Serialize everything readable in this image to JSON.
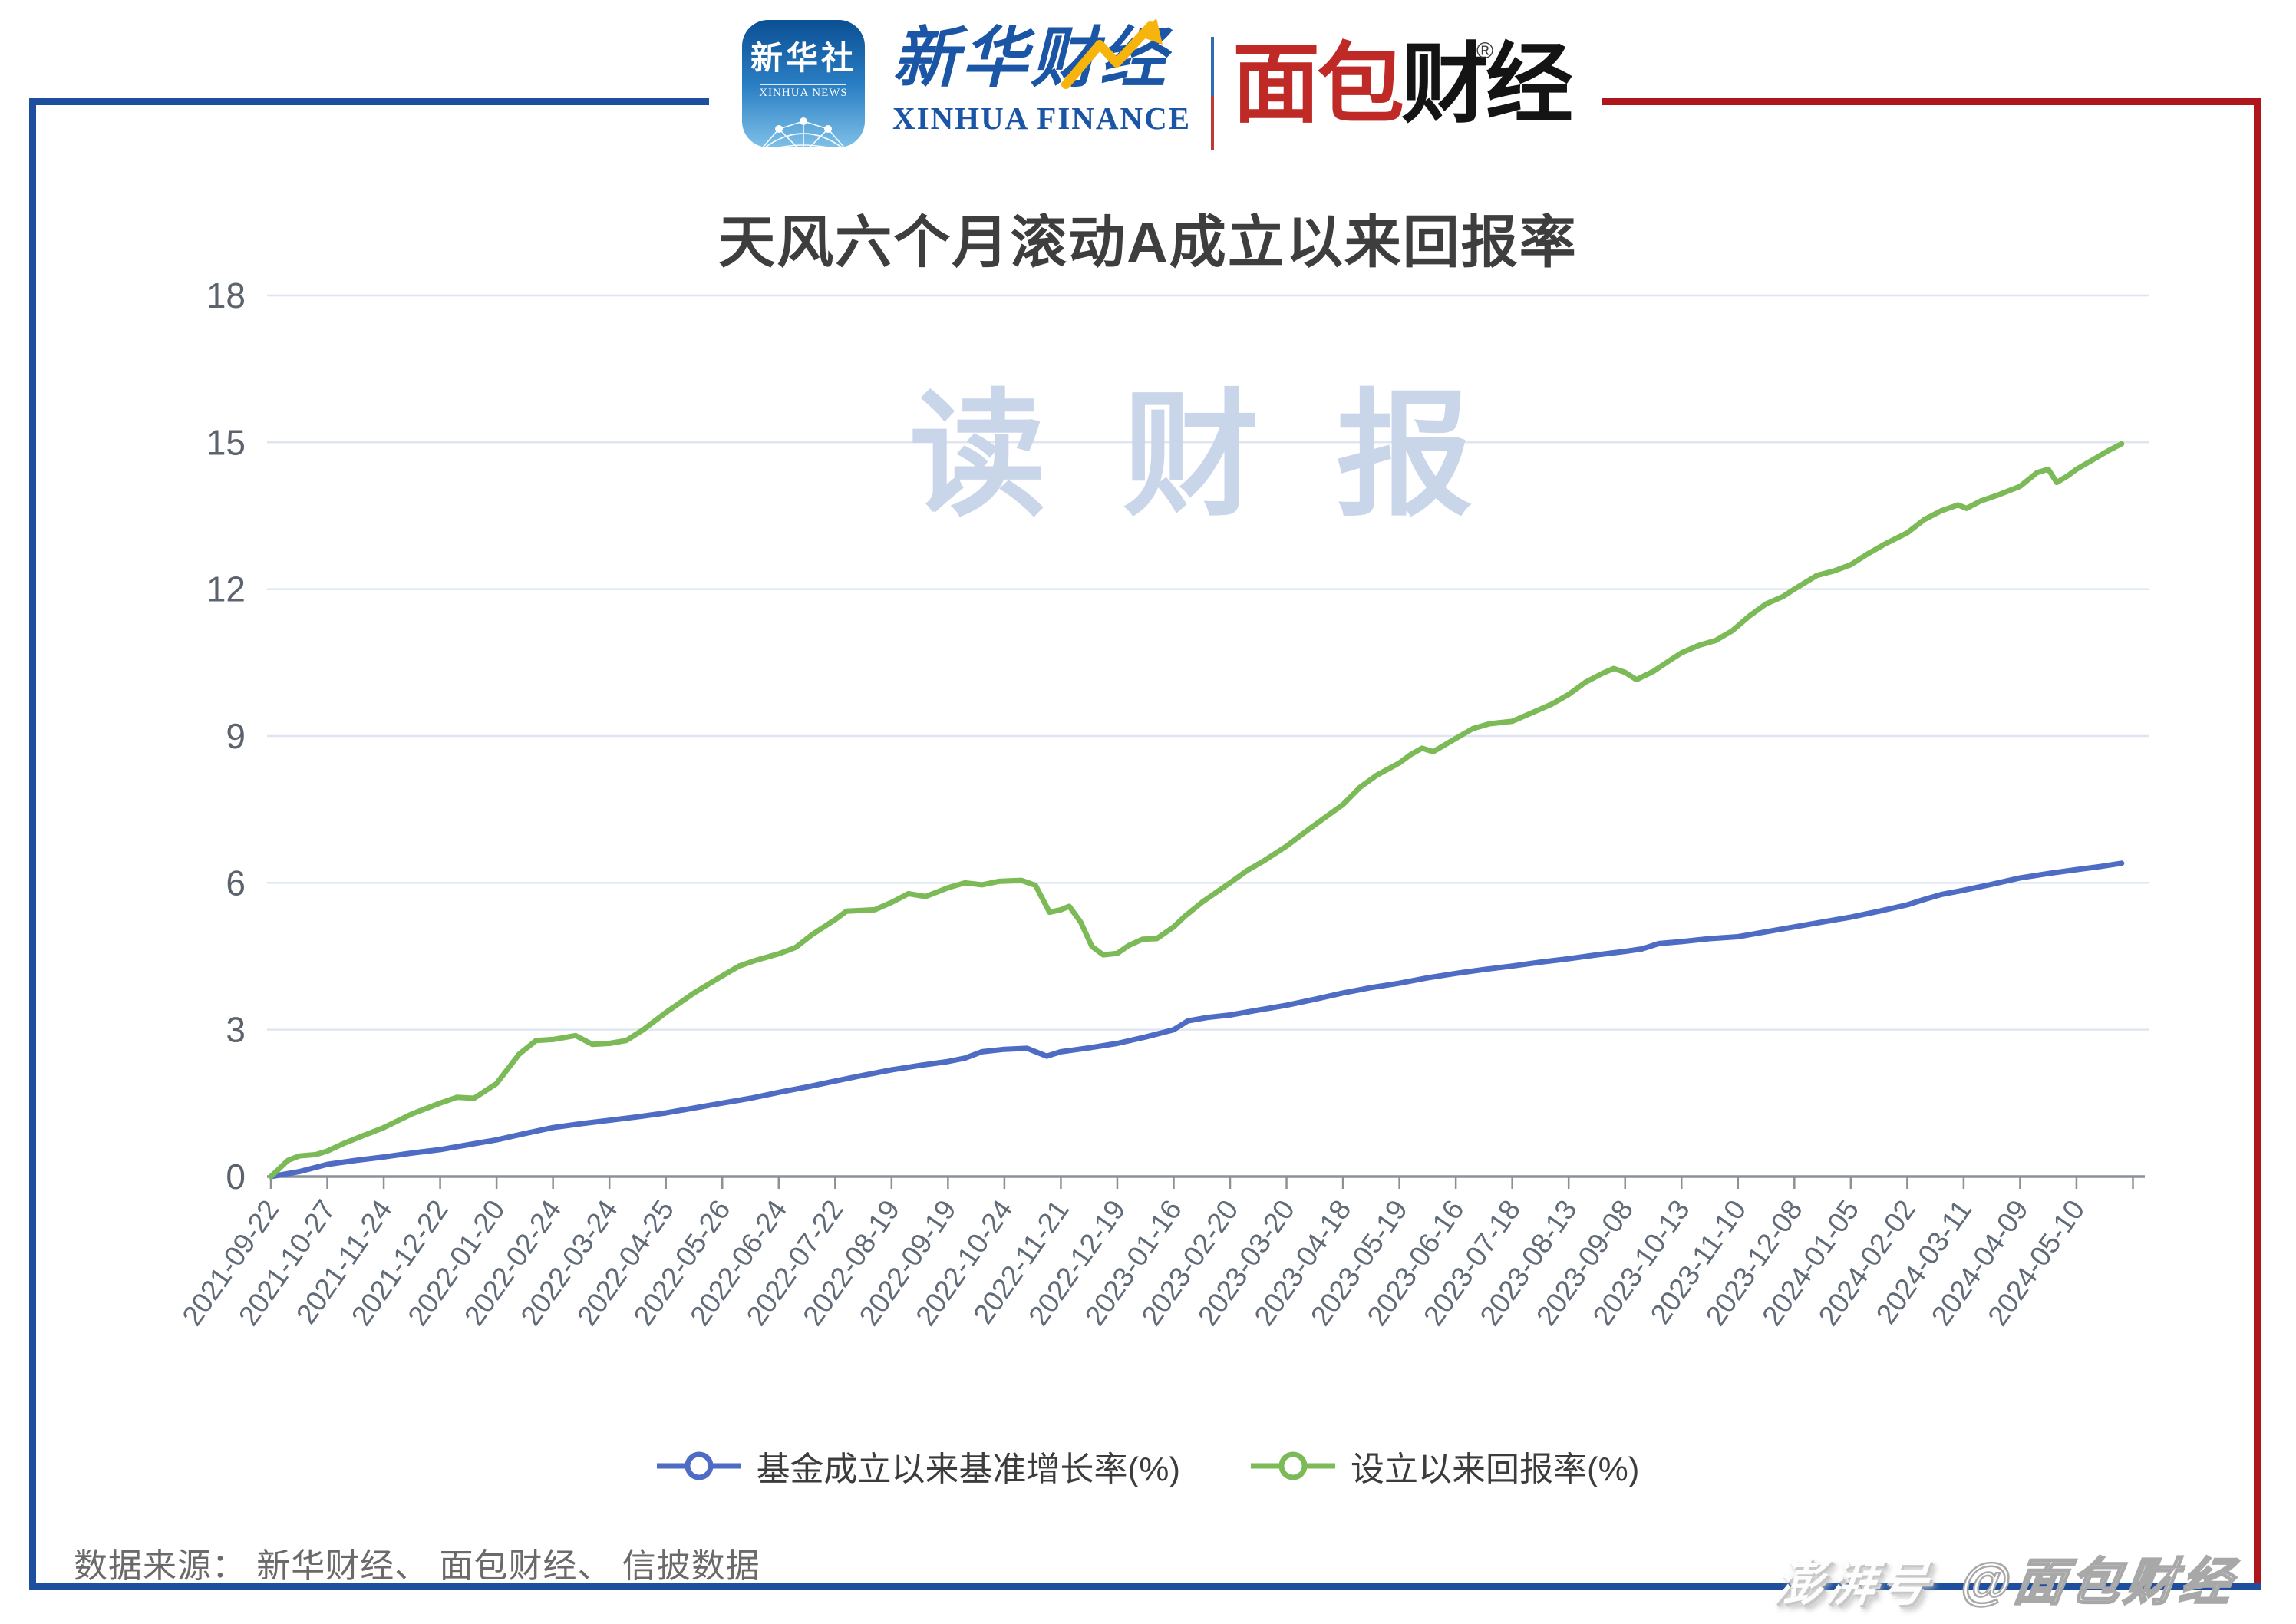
{
  "header": {
    "xinhua_icon": {
      "line1": "新华社",
      "line2": "XINHUA NEWS"
    },
    "xinhua_finance": {
      "cn": "新华财经",
      "en": "XINHUA FINANCE"
    },
    "mianbao": {
      "part_red": "面包",
      "part_black": "财经",
      "reg": "®"
    }
  },
  "title": "天风六个月滚动A成立以来回报率",
  "watermark_center": "读财报",
  "legend": [
    {
      "label": "基金成立以来基准增长率(%)",
      "color": "#4e6cc3"
    },
    {
      "label": "设立以来回报率(%)",
      "color": "#7cba58"
    }
  ],
  "footer": {
    "source": "数据来源： 新华财经、 面包财经、 信披数据"
  },
  "watermark_bottom": {
    "left": "澎湃号",
    "right": "@面包财经"
  },
  "colors": {
    "frame_blue": "#1d4f9e",
    "frame_red": "#ae161c",
    "gridline": "#dfe6f2",
    "axis": "#8b9198",
    "tick_label": "#616b77",
    "watermark": "#c9d6ea",
    "title_text": "#3e3e3e"
  },
  "chart_data": {
    "type": "line",
    "title": "天风六个月滚动A成立以来回报率",
    "xlabel": "",
    "ylabel": "",
    "ylim": [
      0,
      18
    ],
    "y_ticks": [
      0,
      3,
      6,
      9,
      12,
      15,
      18
    ],
    "grid": true,
    "legend_position": "bottom",
    "categories": [
      "2021-09-22",
      "2021-10-27",
      "2021-11-24",
      "2021-12-22",
      "2022-01-20",
      "2022-02-24",
      "2022-03-24",
      "2022-04-25",
      "2022-05-26",
      "2022-06-24",
      "2022-07-22",
      "2022-08-19",
      "2022-09-19",
      "2022-10-24",
      "2022-11-21",
      "2022-12-19",
      "2023-01-16",
      "2023-02-20",
      "2023-03-20",
      "2023-04-18",
      "2023-05-19",
      "2023-06-16",
      "2023-07-18",
      "2023-08-13",
      "2023-09-08",
      "2023-10-13",
      "2023-11-10",
      "2023-12-08",
      "2024-01-05",
      "2024-02-02",
      "2024-03-11",
      "2024-04-09",
      "2024-05-10"
    ],
    "series": [
      {
        "name": "基金成立以来基准增长率(%)",
        "color": "#4e6cc3",
        "values": [
          0,
          0.25,
          0.4,
          0.55,
          0.75,
          1.0,
          1.15,
          1.3,
          1.5,
          1.72,
          1.95,
          2.18,
          2.35,
          2.6,
          2.55,
          2.72,
          3.0,
          3.3,
          3.5,
          3.75,
          3.95,
          4.15,
          4.3,
          4.45,
          4.6,
          4.8,
          4.9,
          5.1,
          5.3,
          5.55,
          5.85,
          6.1,
          6.27
        ],
        "detail_points": [
          [
            0,
            0
          ],
          [
            0.5,
            0.1
          ],
          [
            1,
            0.25
          ],
          [
            1.5,
            0.33
          ],
          [
            2,
            0.4
          ],
          [
            2.5,
            0.48
          ],
          [
            3,
            0.55
          ],
          [
            3.5,
            0.65
          ],
          [
            4,
            0.75
          ],
          [
            4.5,
            0.88
          ],
          [
            5,
            1.0
          ],
          [
            5.5,
            1.08
          ],
          [
            6,
            1.15
          ],
          [
            6.5,
            1.22
          ],
          [
            7,
            1.3
          ],
          [
            7.5,
            1.4
          ],
          [
            8,
            1.5
          ],
          [
            8.5,
            1.6
          ],
          [
            9,
            1.72
          ],
          [
            9.5,
            1.83
          ],
          [
            10,
            1.95
          ],
          [
            10.5,
            2.07
          ],
          [
            11,
            2.18
          ],
          [
            11.5,
            2.27
          ],
          [
            12,
            2.35
          ],
          [
            12.3,
            2.42
          ],
          [
            12.6,
            2.55
          ],
          [
            13,
            2.6
          ],
          [
            13.4,
            2.62
          ],
          [
            13.75,
            2.46
          ],
          [
            14,
            2.55
          ],
          [
            14.5,
            2.63
          ],
          [
            15,
            2.72
          ],
          [
            15.5,
            2.85
          ],
          [
            16,
            3.0
          ],
          [
            16.25,
            3.18
          ],
          [
            16.6,
            3.25
          ],
          [
            17,
            3.3
          ],
          [
            17.5,
            3.4
          ],
          [
            18,
            3.5
          ],
          [
            18.5,
            3.62
          ],
          [
            19,
            3.75
          ],
          [
            19.5,
            3.86
          ],
          [
            20,
            3.95
          ],
          [
            20.5,
            4.06
          ],
          [
            21,
            4.15
          ],
          [
            21.5,
            4.23
          ],
          [
            22,
            4.3
          ],
          [
            22.5,
            4.38
          ],
          [
            23,
            4.45
          ],
          [
            23.5,
            4.53
          ],
          [
            24,
            4.6
          ],
          [
            24.3,
            4.65
          ],
          [
            24.6,
            4.76
          ],
          [
            25,
            4.8
          ],
          [
            25.5,
            4.86
          ],
          [
            26,
            4.9
          ],
          [
            26.5,
            5.0
          ],
          [
            27,
            5.1
          ],
          [
            27.5,
            5.2
          ],
          [
            28,
            5.3
          ],
          [
            28.5,
            5.42
          ],
          [
            29,
            5.55
          ],
          [
            29.3,
            5.66
          ],
          [
            29.6,
            5.76
          ],
          [
            30,
            5.85
          ],
          [
            30.5,
            5.97
          ],
          [
            31,
            6.1
          ],
          [
            31.5,
            6.19
          ],
          [
            32,
            6.27
          ],
          [
            32.4,
            6.33
          ],
          [
            32.8,
            6.4
          ]
        ]
      },
      {
        "name": "设立以来回报率(%)",
        "color": "#7cba58",
        "values": [
          0,
          0.52,
          1.0,
          1.5,
          1.9,
          2.8,
          2.72,
          3.35,
          4.1,
          4.55,
          5.25,
          5.6,
          5.9,
          6.05,
          5.45,
          4.56,
          5.1,
          6.0,
          6.75,
          7.6,
          8.45,
          8.95,
          9.3,
          9.85,
          10.3,
          10.7,
          11.2,
          12.0,
          12.5,
          13.15,
          13.75,
          14.1,
          14.45
        ],
        "detail_points": [
          [
            0,
            0
          ],
          [
            0.3,
            0.33
          ],
          [
            0.5,
            0.42
          ],
          [
            0.8,
            0.45
          ],
          [
            1,
            0.52
          ],
          [
            1.3,
            0.68
          ],
          [
            1.6,
            0.82
          ],
          [
            2,
            1.0
          ],
          [
            2.5,
            1.28
          ],
          [
            3,
            1.5
          ],
          [
            3.3,
            1.62
          ],
          [
            3.6,
            1.6
          ],
          [
            4,
            1.9
          ],
          [
            4.4,
            2.5
          ],
          [
            4.7,
            2.78
          ],
          [
            5,
            2.8
          ],
          [
            5.4,
            2.88
          ],
          [
            5.7,
            2.7
          ],
          [
            6,
            2.72
          ],
          [
            6.3,
            2.78
          ],
          [
            6.6,
            3.0
          ],
          [
            7,
            3.35
          ],
          [
            7.5,
            3.75
          ],
          [
            8,
            4.1
          ],
          [
            8.3,
            4.3
          ],
          [
            8.6,
            4.42
          ],
          [
            9,
            4.55
          ],
          [
            9.3,
            4.68
          ],
          [
            9.6,
            4.95
          ],
          [
            10,
            5.25
          ],
          [
            10.2,
            5.42
          ],
          [
            10.7,
            5.45
          ],
          [
            11,
            5.6
          ],
          [
            11.3,
            5.78
          ],
          [
            11.6,
            5.72
          ],
          [
            12,
            5.9
          ],
          [
            12.3,
            6.0
          ],
          [
            12.6,
            5.96
          ],
          [
            12.9,
            6.03
          ],
          [
            13.3,
            6.05
          ],
          [
            13.55,
            5.95
          ],
          [
            13.8,
            5.4
          ],
          [
            14,
            5.45
          ],
          [
            14.15,
            5.52
          ],
          [
            14.35,
            5.2
          ],
          [
            14.55,
            4.7
          ],
          [
            14.75,
            4.53
          ],
          [
            15,
            4.56
          ],
          [
            15.2,
            4.72
          ],
          [
            15.45,
            4.85
          ],
          [
            15.7,
            4.86
          ],
          [
            16,
            5.1
          ],
          [
            16.2,
            5.32
          ],
          [
            16.5,
            5.6
          ],
          [
            17,
            6.0
          ],
          [
            17.3,
            6.25
          ],
          [
            17.6,
            6.45
          ],
          [
            18,
            6.75
          ],
          [
            18.4,
            7.1
          ],
          [
            18.7,
            7.35
          ],
          [
            19,
            7.6
          ],
          [
            19.3,
            7.95
          ],
          [
            19.6,
            8.2
          ],
          [
            20,
            8.45
          ],
          [
            20.2,
            8.62
          ],
          [
            20.4,
            8.75
          ],
          [
            20.6,
            8.68
          ],
          [
            21,
            8.95
          ],
          [
            21.3,
            9.15
          ],
          [
            21.6,
            9.25
          ],
          [
            22,
            9.3
          ],
          [
            22.3,
            9.45
          ],
          [
            22.7,
            9.65
          ],
          [
            23,
            9.85
          ],
          [
            23.3,
            10.1
          ],
          [
            23.6,
            10.28
          ],
          [
            23.8,
            10.38
          ],
          [
            24,
            10.3
          ],
          [
            24.2,
            10.15
          ],
          [
            24.5,
            10.32
          ],
          [
            24.8,
            10.55
          ],
          [
            25,
            10.7
          ],
          [
            25.3,
            10.85
          ],
          [
            25.6,
            10.95
          ],
          [
            25.9,
            11.15
          ],
          [
            26.2,
            11.45
          ],
          [
            26.5,
            11.7
          ],
          [
            26.8,
            11.85
          ],
          [
            27,
            12.0
          ],
          [
            27.4,
            12.28
          ],
          [
            27.7,
            12.37
          ],
          [
            28,
            12.5
          ],
          [
            28.3,
            12.72
          ],
          [
            28.6,
            12.92
          ],
          [
            29,
            13.15
          ],
          [
            29.3,
            13.42
          ],
          [
            29.6,
            13.6
          ],
          [
            29.9,
            13.72
          ],
          [
            30.05,
            13.65
          ],
          [
            30.3,
            13.8
          ],
          [
            30.6,
            13.92
          ],
          [
            31,
            14.1
          ],
          [
            31.3,
            14.38
          ],
          [
            31.5,
            14.45
          ],
          [
            31.65,
            14.18
          ],
          [
            31.85,
            14.32
          ],
          [
            32,
            14.45
          ],
          [
            32.3,
            14.65
          ],
          [
            32.55,
            14.82
          ],
          [
            32.8,
            14.97
          ]
        ]
      }
    ]
  }
}
